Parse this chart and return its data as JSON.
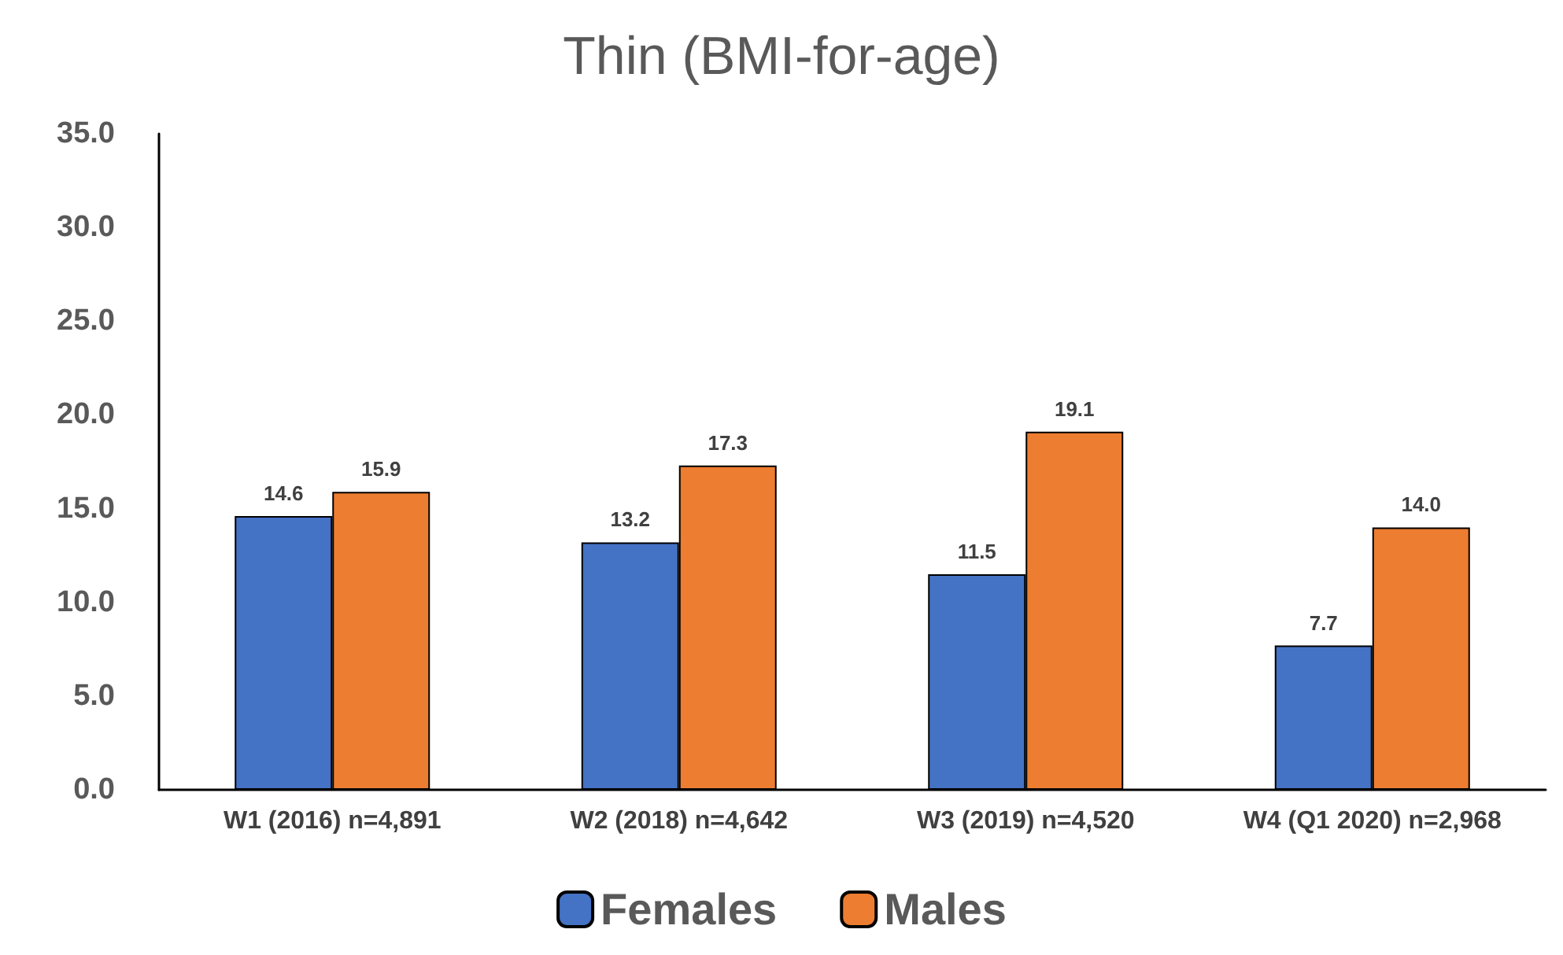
{
  "chart_data": {
    "type": "bar",
    "title": "Thin (BMI-for-age)",
    "categories": [
      "W1 (2016) n=4,891",
      "W2 (2018) n=4,642",
      "W3 (2019) n=4,520",
      "W4 (Q1 2020) n=2,968"
    ],
    "series": [
      {
        "name": "Females",
        "color": "#4472c4",
        "values": [
          14.6,
          13.2,
          11.5,
          7.7
        ],
        "value_labels": [
          "14.6",
          "13.2",
          "11.5",
          "7.7"
        ]
      },
      {
        "name": "Males",
        "color": "#ed7d31",
        "values": [
          15.9,
          17.3,
          19.1,
          14.0
        ],
        "value_labels": [
          "15.9",
          "17.3",
          "19.1",
          "14.0"
        ]
      }
    ],
    "ylim": [
      0,
      35
    ],
    "yticks": [
      {
        "value": 0,
        "label": "0.0"
      },
      {
        "value": 5,
        "label": "5.0"
      },
      {
        "value": 10,
        "label": "10.0"
      },
      {
        "value": 15,
        "label": "15.0"
      },
      {
        "value": 20,
        "label": "20.0"
      },
      {
        "value": 25,
        "label": "25.0"
      },
      {
        "value": 30,
        "label": "30.0"
      },
      {
        "value": 35,
        "label": "35.0"
      }
    ],
    "grid": false,
    "legend": "bottom"
  }
}
